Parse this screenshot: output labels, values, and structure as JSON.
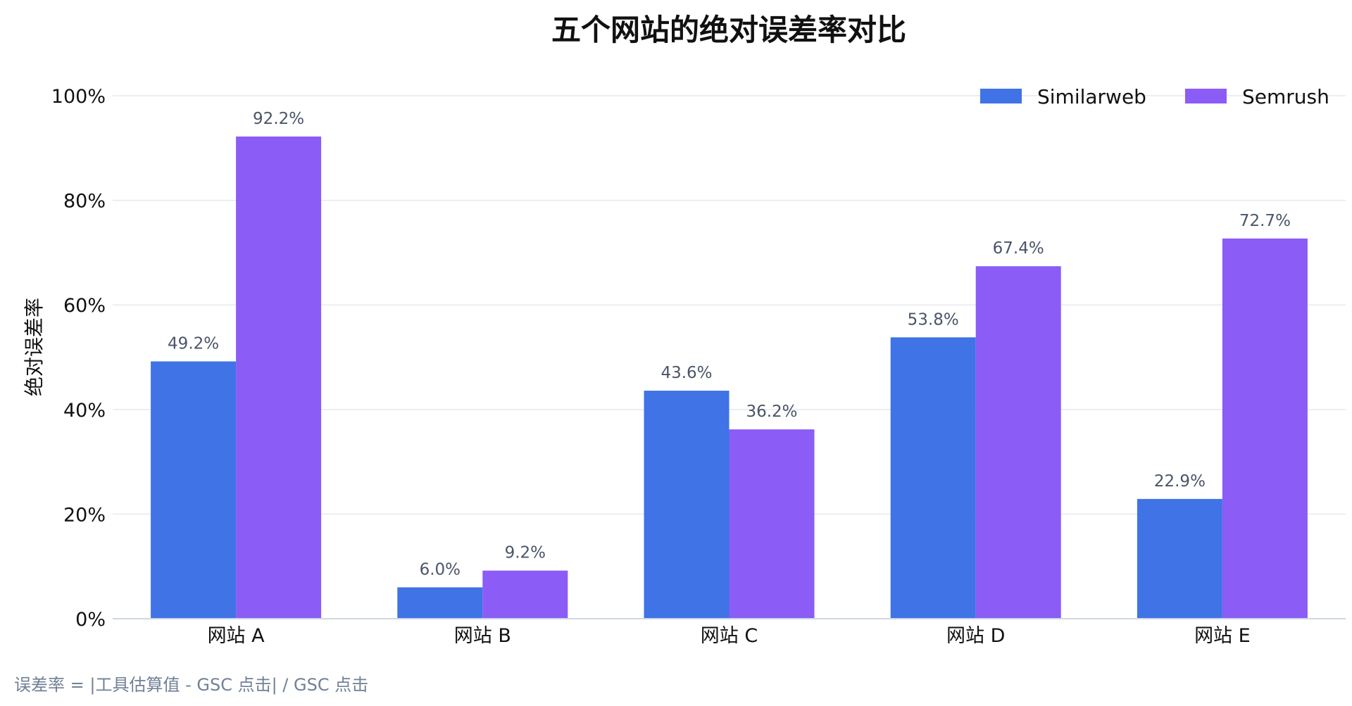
{
  "chart_data": {
    "type": "bar",
    "title": "五个网站的绝对误差率对比",
    "ylabel": "绝对误差率",
    "xlabel": "",
    "categories": [
      "网站 A",
      "网站 B",
      "网站 C",
      "网站 D",
      "网站 E"
    ],
    "series": [
      {
        "name": "Similarweb",
        "color": "#3f73e6",
        "values": [
          49.2,
          6.0,
          43.6,
          53.8,
          22.9
        ],
        "labels": [
          "49.2%",
          "6.0%",
          "43.6%",
          "53.8%",
          "22.9%"
        ]
      },
      {
        "name": "Semrush",
        "color": "#8b5cf6",
        "values": [
          92.2,
          9.2,
          36.2,
          67.4,
          72.7
        ],
        "labels": [
          "92.2%",
          "9.2%",
          "36.2%",
          "67.4%",
          "72.7%"
        ]
      }
    ],
    "ylim": [
      0,
      100
    ],
    "yticks": [
      0,
      20,
      40,
      60,
      80,
      100
    ],
    "ytick_labels": [
      "0%",
      "20%",
      "40%",
      "60%",
      "80%",
      "100%"
    ],
    "grid": true,
    "legend_position": "top-right",
    "footnote": "误差率 = |工具估算值 - GSC 点击| / GSC 点击"
  }
}
